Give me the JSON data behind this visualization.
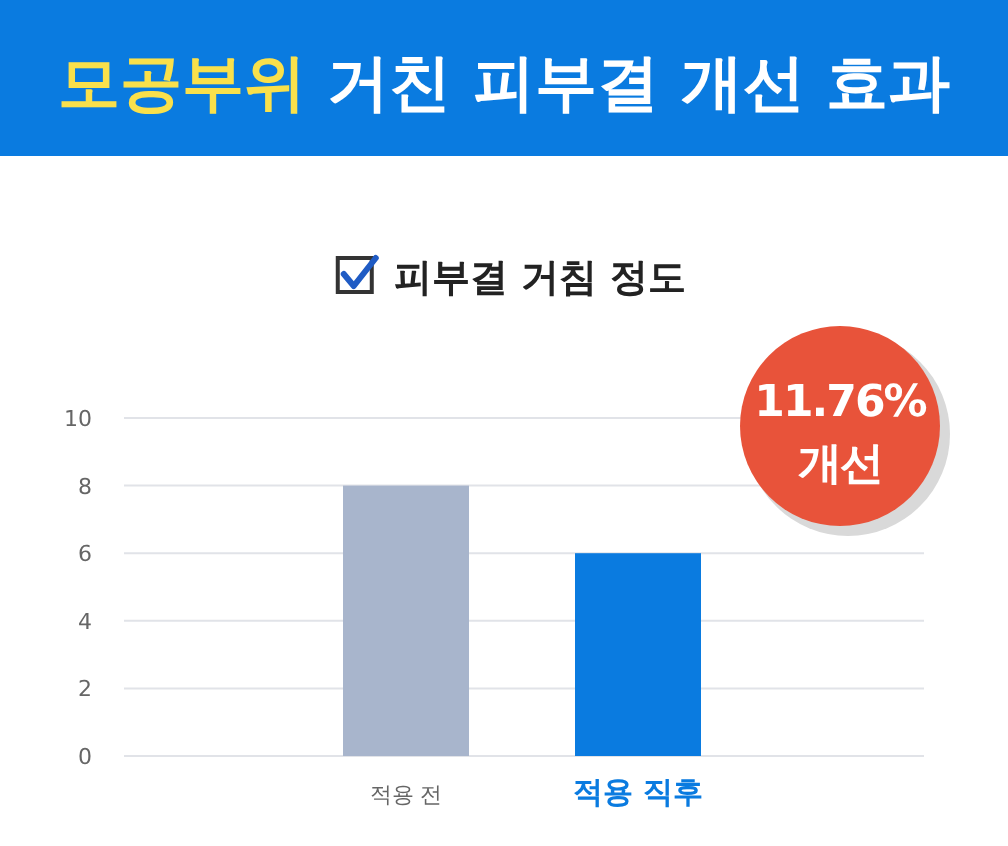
{
  "chart_data": {
    "type": "bar",
    "title": "모공부위 거친 피부결 개선 효과",
    "subtitle": "피부결 거침 정도",
    "categories": [
      "적용 전",
      "적용 직후"
    ],
    "values": [
      8,
      6
    ],
    "colors": [
      "#a8b5cc",
      "#0a7be0"
    ],
    "ylim": [
      0,
      10
    ],
    "yticks": [
      0,
      2,
      4,
      6,
      8,
      10
    ],
    "grid": "y",
    "annotations": [
      "11.76% 개선"
    ]
  }
}
